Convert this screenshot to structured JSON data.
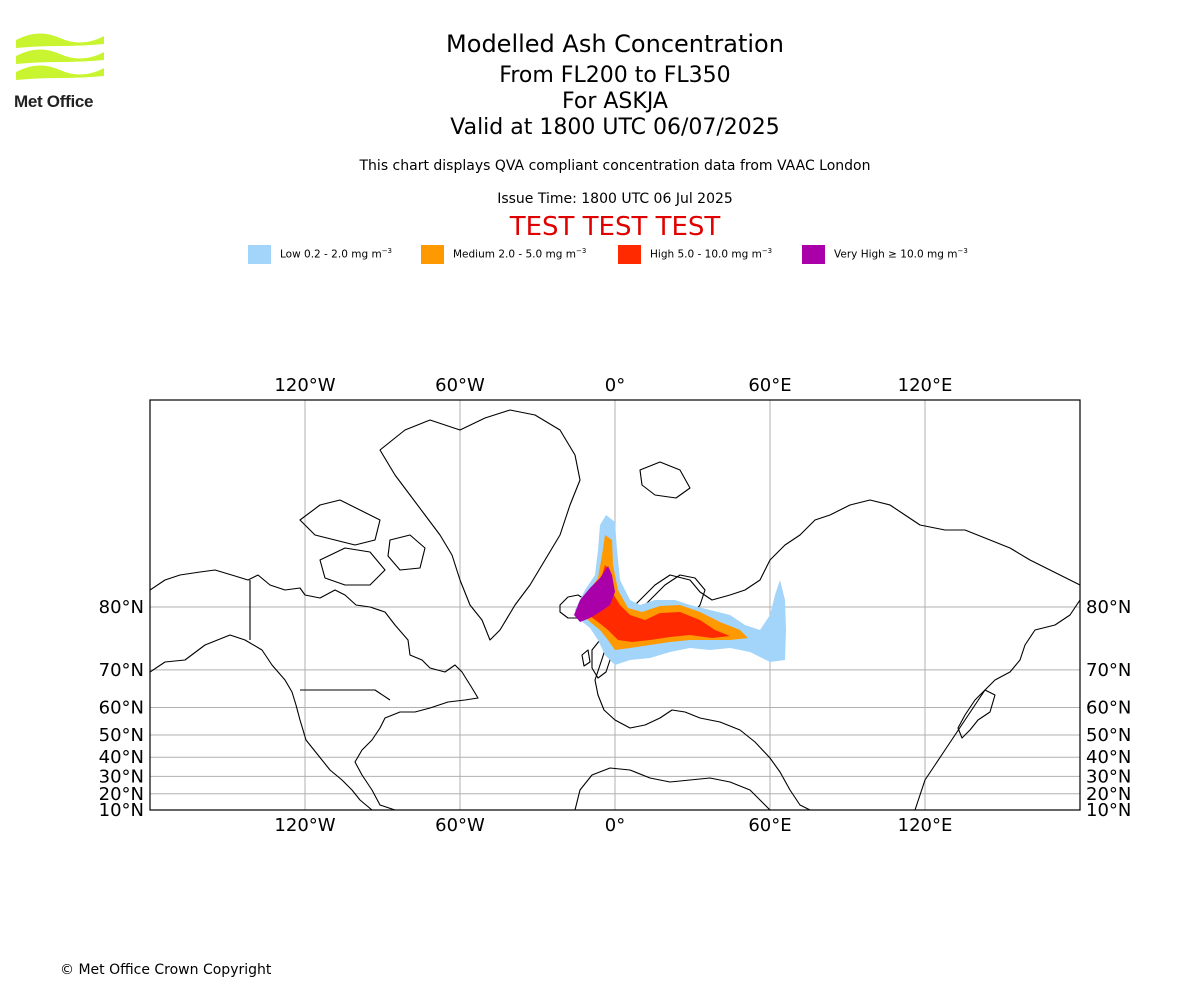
{
  "logo": {
    "text": "Met Office",
    "color": "#c8f530"
  },
  "title": {
    "line1": "Modelled Ash Concentration",
    "line2": "From FL200 to FL350",
    "line3": "For ASKJA",
    "line4": "Valid at 1800 UTC 06/07/2025"
  },
  "subtitle": "This chart displays QVA compliant concentration data from VAAC London",
  "issue_time": "Issue Time: 1800 UTC 06 Jul 2025",
  "test_banner": "TEST TEST TEST",
  "legend": [
    {
      "label": "Low 0.2 - 2.0 mg m",
      "exp": "−3",
      "color": "#a3d4fa"
    },
    {
      "label": "Medium 2.0 - 5.0 mg m",
      "exp": "−3",
      "color": "#ff9900"
    },
    {
      "label": "High 5.0 - 10.0 mg m",
      "exp": "−3",
      "color": "#ff2a00"
    },
    {
      "label": "Very High ≥ 10.0 mg m",
      "exp": "−3",
      "color": "#aa00aa"
    }
  ],
  "map": {
    "lon_ticks": [
      {
        "lon": -120,
        "label": "120°W"
      },
      {
        "lon": -60,
        "label": "60°W"
      },
      {
        "lon": 0,
        "label": "0°"
      },
      {
        "lon": 60,
        "label": "60°E"
      },
      {
        "lon": 120,
        "label": "120°E"
      }
    ],
    "lat_ticks": [
      {
        "lat": 80,
        "label": "80°N"
      },
      {
        "lat": 70,
        "label": "70°N"
      },
      {
        "lat": 60,
        "label": "60°N"
      },
      {
        "lat": 50,
        "label": "50°N"
      },
      {
        "lat": 40,
        "label": "40°N"
      },
      {
        "lat": 30,
        "label": "30°N"
      },
      {
        "lat": 20,
        "label": "20°N"
      },
      {
        "lat": 10,
        "label": "10°N"
      }
    ],
    "lon_range": [
      -180,
      180
    ],
    "lat_range": [
      10,
      89
    ],
    "grid": true
  },
  "copyright": "© Met Office Crown Copyright"
}
